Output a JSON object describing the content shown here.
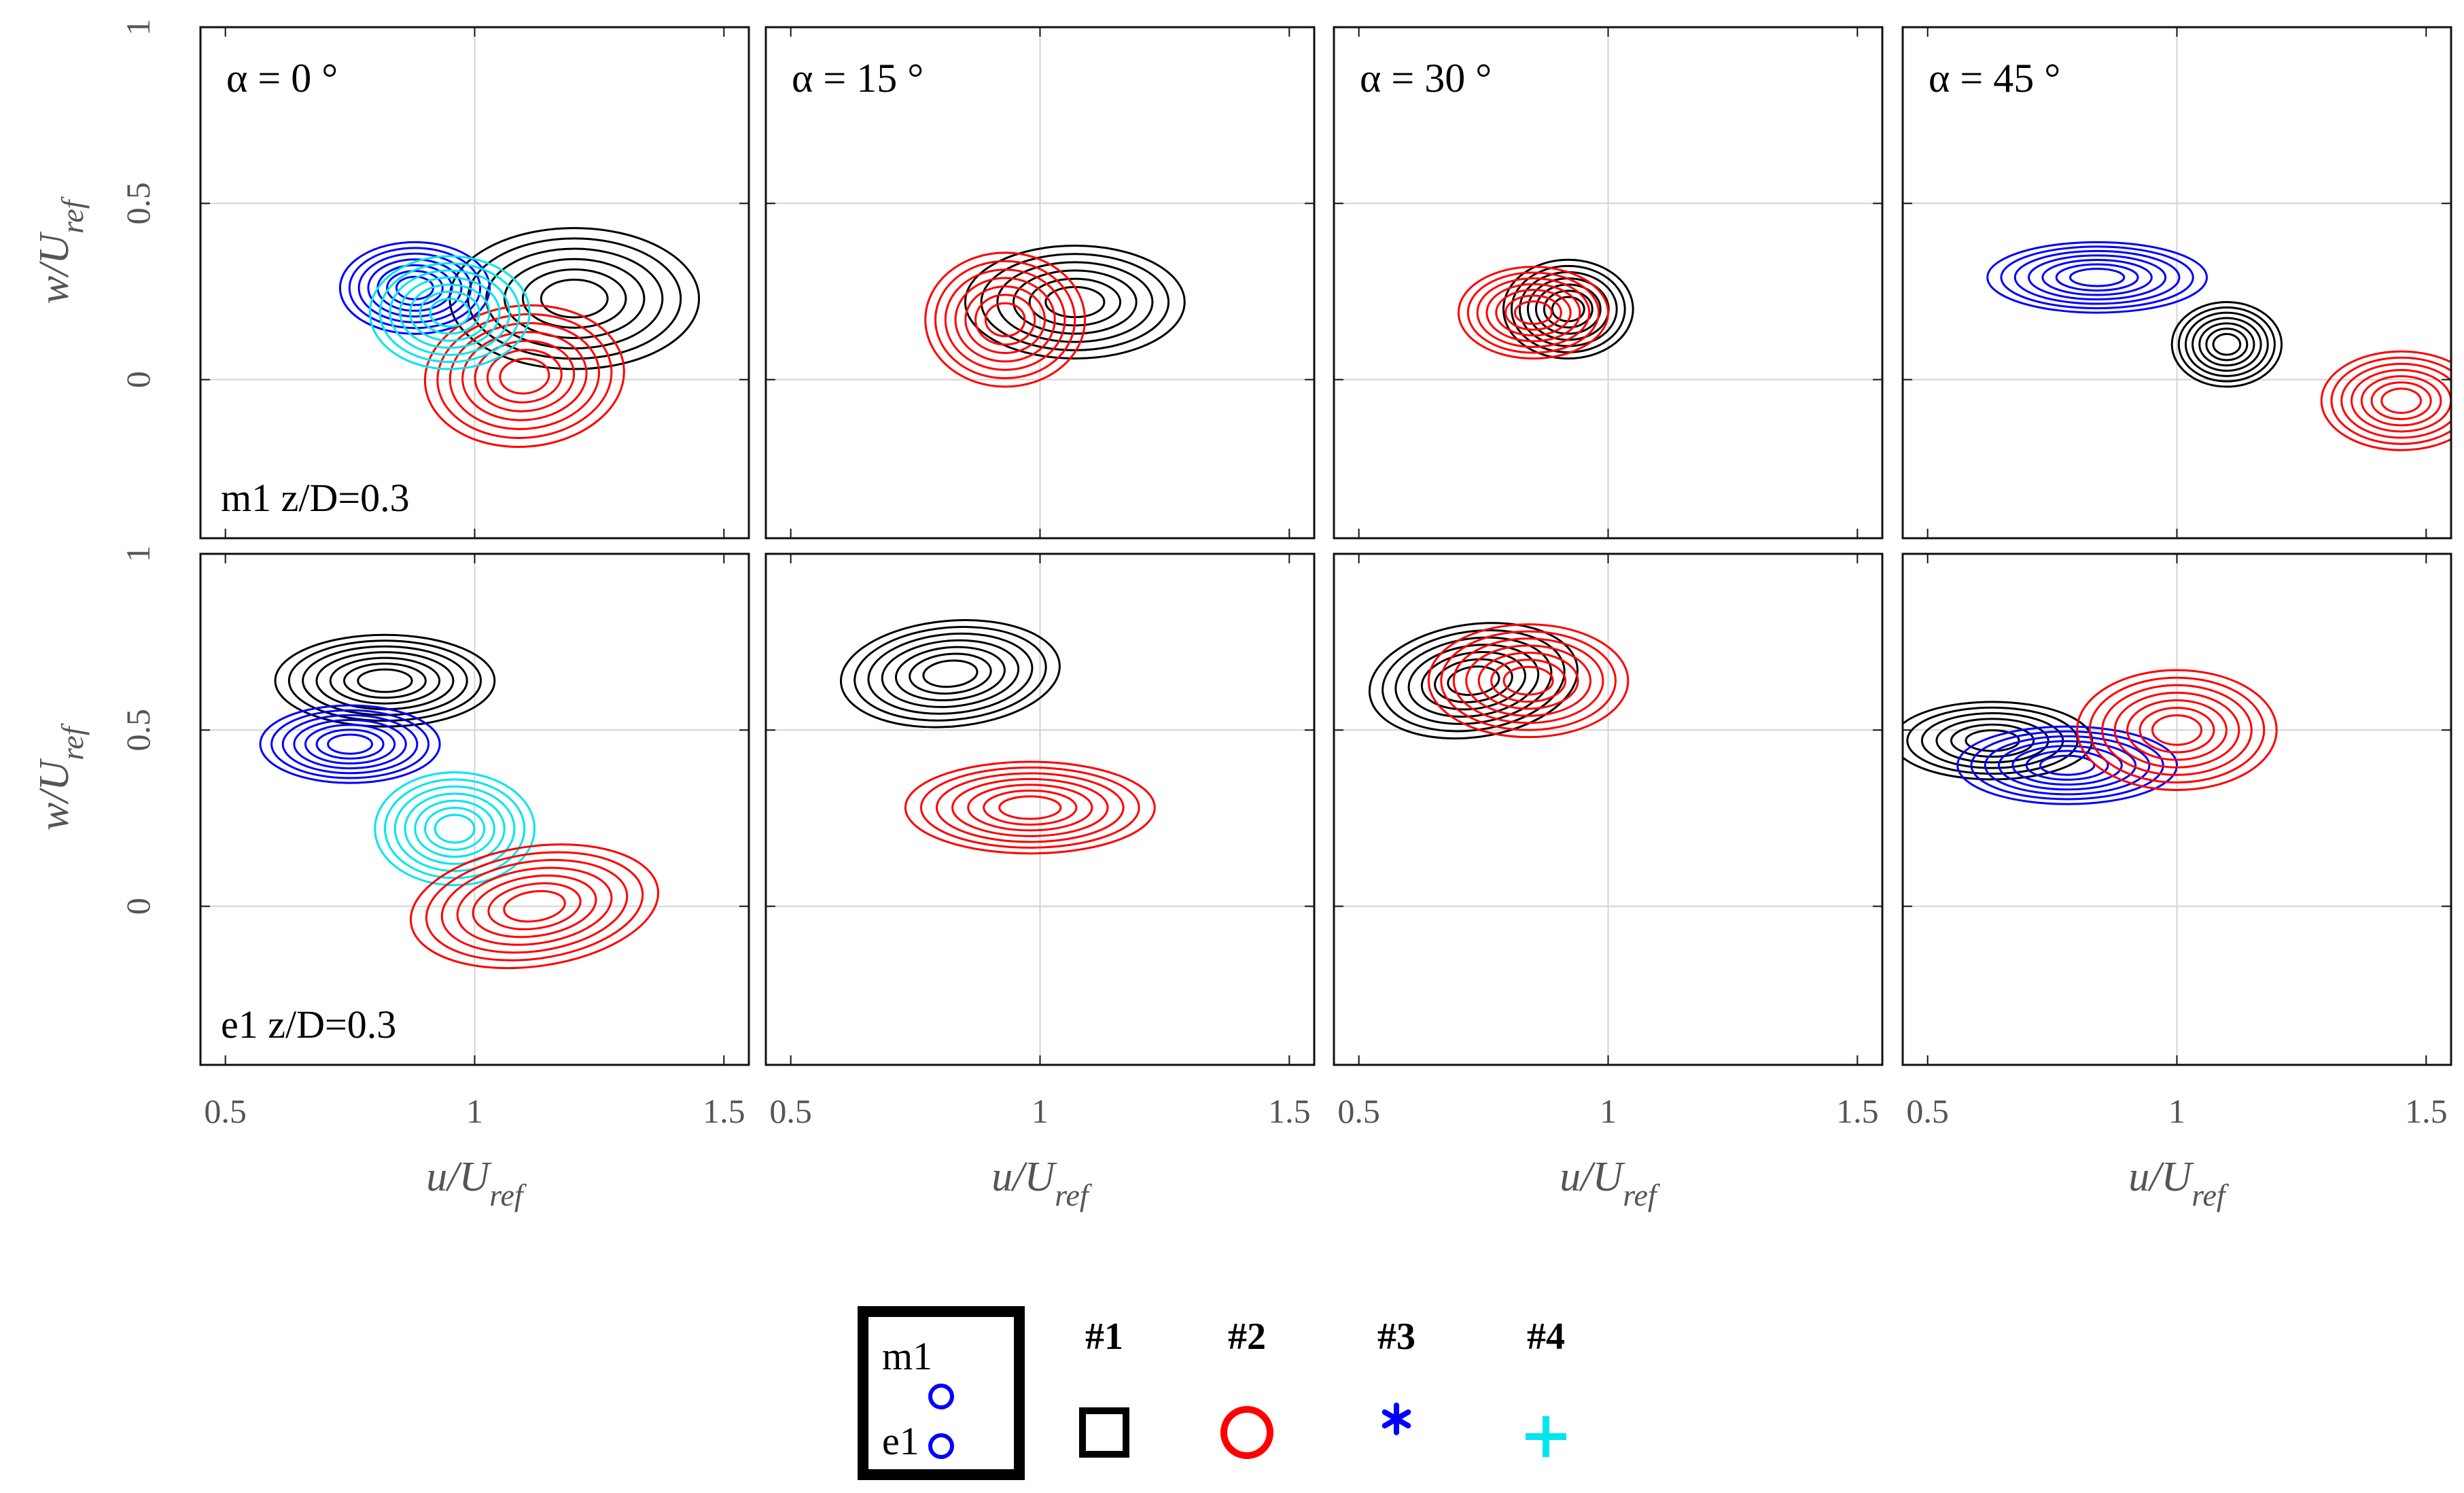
{
  "chart_data": {
    "type": "contour",
    "layout": "2 rows x 4 columns",
    "x_axis": {
      "label_main": "u/U",
      "label_sub": "ref",
      "range": [
        0.45,
        1.55
      ],
      "ticks": [
        0.5,
        1,
        1.5
      ],
      "tick_labels": [
        "0.5",
        "1",
        "1.5"
      ]
    },
    "y_axis": {
      "label_main": "w/U",
      "label_sub": "ref",
      "range": [
        -0.45,
        1.0
      ],
      "ticks": [
        0,
        0.5,
        1
      ],
      "tick_labels": [
        "0",
        "0.5",
        "1"
      ]
    },
    "grid": true,
    "columns": [
      {
        "alpha_label": "α = 0 °",
        "alpha": 0
      },
      {
        "alpha_label": "α = 15 °",
        "alpha": 15
      },
      {
        "alpha_label": "α = 30 °",
        "alpha": 30
      },
      {
        "alpha_label": "α = 45 °",
        "alpha": 45
      }
    ],
    "row_labels": [
      "m1 z/D=0.3",
      "e1 z/D=0.3"
    ],
    "series_colors": {
      "#1": "#000000",
      "#2": "#ff0000",
      "#3": "#0000ff",
      "#4": "#00e5ee"
    },
    "panels": [
      {
        "row": 0,
        "col": 0,
        "blobs": [
          {
            "series": "#1",
            "cx": 1.2,
            "cy": 0.23,
            "rx": 0.25,
            "ry": 0.2,
            "rot": 0,
            "levels": 6
          },
          {
            "series": "#2",
            "cx": 1.1,
            "cy": 0.01,
            "rx": 0.2,
            "ry": 0.2,
            "rot": -5,
            "levels": 7
          },
          {
            "series": "#3",
            "cx": 0.88,
            "cy": 0.26,
            "rx": 0.15,
            "ry": 0.13,
            "rot": 0,
            "levels": 7
          },
          {
            "series": "#4",
            "cx": 0.95,
            "cy": 0.19,
            "rx": 0.16,
            "ry": 0.16,
            "rot": 0,
            "levels": 7
          }
        ]
      },
      {
        "row": 0,
        "col": 1,
        "blobs": [
          {
            "series": "#1",
            "cx": 1.07,
            "cy": 0.22,
            "rx": 0.22,
            "ry": 0.16,
            "rot": 0,
            "levels": 6
          },
          {
            "series": "#2",
            "cx": 0.93,
            "cy": 0.17,
            "rx": 0.16,
            "ry": 0.19,
            "rot": 0,
            "levels": 7
          }
        ]
      },
      {
        "row": 0,
        "col": 2,
        "blobs": [
          {
            "series": "#1",
            "cx": 0.92,
            "cy": 0.2,
            "rx": 0.13,
            "ry": 0.14,
            "rot": 0,
            "levels": 7
          },
          {
            "series": "#2",
            "cx": 0.85,
            "cy": 0.19,
            "rx": 0.15,
            "ry": 0.13,
            "rot": 0,
            "levels": 7
          }
        ]
      },
      {
        "row": 0,
        "col": 3,
        "blobs": [
          {
            "series": "#3",
            "cx": 0.84,
            "cy": 0.29,
            "rx": 0.22,
            "ry": 0.1,
            "rot": 0,
            "levels": 7
          },
          {
            "series": "#1",
            "cx": 1.1,
            "cy": 0.1,
            "rx": 0.11,
            "ry": 0.12,
            "rot": 0,
            "levels": 7
          },
          {
            "series": "#2",
            "cx": 1.45,
            "cy": -0.06,
            "rx": 0.16,
            "ry": 0.14,
            "rot": 0,
            "levels": 7
          }
        ]
      },
      {
        "row": 1,
        "col": 0,
        "blobs": [
          {
            "series": "#1",
            "cx": 0.82,
            "cy": 0.64,
            "rx": 0.22,
            "ry": 0.13,
            "rot": 0,
            "levels": 7
          },
          {
            "series": "#3",
            "cx": 0.75,
            "cy": 0.46,
            "rx": 0.18,
            "ry": 0.11,
            "rot": 0,
            "levels": 7
          },
          {
            "series": "#4",
            "cx": 0.96,
            "cy": 0.22,
            "rx": 0.16,
            "ry": 0.16,
            "rot": 0,
            "levels": 7
          },
          {
            "series": "#2",
            "cx": 1.12,
            "cy": 0.0,
            "rx": 0.25,
            "ry": 0.17,
            "rot": -8,
            "levels": 7
          }
        ]
      },
      {
        "row": 1,
        "col": 1,
        "blobs": [
          {
            "series": "#1",
            "cx": 0.82,
            "cy": 0.66,
            "rx": 0.22,
            "ry": 0.15,
            "rot": -5,
            "levels": 7
          },
          {
            "series": "#2",
            "cx": 0.98,
            "cy": 0.28,
            "rx": 0.25,
            "ry": 0.13,
            "rot": 0,
            "levels": 7
          }
        ]
      },
      {
        "row": 1,
        "col": 2,
        "blobs": [
          {
            "series": "#1",
            "cx": 0.73,
            "cy": 0.64,
            "rx": 0.21,
            "ry": 0.16,
            "rot": -8,
            "levels": 7
          },
          {
            "series": "#2",
            "cx": 0.84,
            "cy": 0.64,
            "rx": 0.2,
            "ry": 0.16,
            "rot": 0,
            "levels": 7
          }
        ]
      },
      {
        "row": 1,
        "col": 3,
        "blobs": [
          {
            "series": "#1",
            "cx": 0.63,
            "cy": 0.47,
            "rx": 0.2,
            "ry": 0.11,
            "rot": 0,
            "levels": 6
          },
          {
            "series": "#3",
            "cx": 0.78,
            "cy": 0.4,
            "rx": 0.22,
            "ry": 0.11,
            "rot": 0,
            "levels": 7
          },
          {
            "series": "#2",
            "cx": 1.0,
            "cy": 0.5,
            "rx": 0.2,
            "ry": 0.17,
            "rot": 0,
            "levels": 7
          }
        ]
      }
    ],
    "legend": {
      "inset_top": "m1",
      "inset_bottom": "e1",
      "entries": [
        {
          "label": "#1",
          "marker": "square",
          "color": "#000000"
        },
        {
          "label": "#2",
          "marker": "circle",
          "color": "#ff0000"
        },
        {
          "label": "#3",
          "marker": "asterisk",
          "color": "#0000ff"
        },
        {
          "label": "#4",
          "marker": "plus",
          "color": "#00e5ee"
        }
      ]
    }
  }
}
